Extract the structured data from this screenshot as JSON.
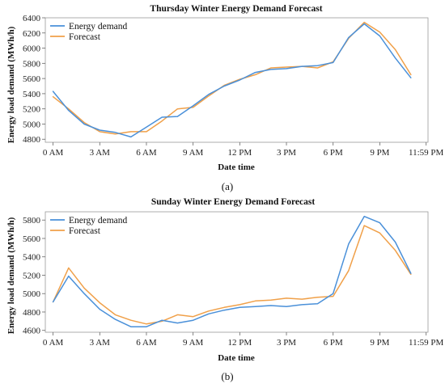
{
  "chart_data": [
    {
      "caption": "(a)",
      "type": "line",
      "title": "Thursday Winter Energy Demand Forecast",
      "xlabel": "Date time",
      "ylabel": "Energy load demand (MWh/h)",
      "x_ticks": [
        {
          "x": 0,
          "label": "0 AM"
        },
        {
          "x": 3,
          "label": "3 AM"
        },
        {
          "x": 6,
          "label": "6 AM"
        },
        {
          "x": 9,
          "label": "9 AM"
        },
        {
          "x": 12,
          "label": "12 PM"
        },
        {
          "x": 15,
          "label": "3 PM"
        },
        {
          "x": 18,
          "label": "6 PM"
        },
        {
          "x": 21,
          "label": "9 PM"
        },
        {
          "x": 23.98,
          "label": "11:59 PM"
        }
      ],
      "xlim": [
        -0.5,
        24.1
      ],
      "y_ticks": [
        4800,
        5000,
        5200,
        5400,
        5600,
        5800,
        6000,
        6200,
        6400
      ],
      "ylim": [
        4760,
        6400
      ],
      "legend": "top-left",
      "grid": false,
      "x": [
        0,
        1,
        2,
        3,
        4,
        5,
        6,
        7,
        8,
        9,
        10,
        11,
        12,
        13,
        14,
        15,
        16,
        17,
        18,
        19,
        20,
        21,
        22,
        23
      ],
      "series": [
        {
          "name": "Energy demand",
          "color": "#4a90d9",
          "values": [
            5430,
            5180,
            5000,
            4920,
            4890,
            4830,
            4960,
            5090,
            5100,
            5240,
            5390,
            5500,
            5580,
            5680,
            5720,
            5730,
            5760,
            5770,
            5810,
            6140,
            6320,
            6160,
            5870,
            5610
          ]
        },
        {
          "name": "Forecast",
          "color": "#f0a049",
          "values": [
            5360,
            5200,
            5020,
            4900,
            4870,
            4900,
            4900,
            5040,
            5200,
            5220,
            5370,
            5510,
            5590,
            5650,
            5740,
            5750,
            5760,
            5740,
            5820,
            6130,
            6340,
            6210,
            5980,
            5650
          ]
        }
      ]
    },
    {
      "caption": "(b)",
      "type": "line",
      "title": "Sunday Winter Energy Demand Forecast",
      "xlabel": "Date time",
      "ylabel": "Energy load demand (MWh/h)",
      "x_ticks": [
        {
          "x": 0,
          "label": "0 AM"
        },
        {
          "x": 3,
          "label": "3 AM"
        },
        {
          "x": 6,
          "label": "6 AM"
        },
        {
          "x": 9,
          "label": "9 AM"
        },
        {
          "x": 12,
          "label": "12 PM"
        },
        {
          "x": 15,
          "label": "3 PM"
        },
        {
          "x": 18,
          "label": "6 PM"
        },
        {
          "x": 21,
          "label": "9 PM"
        },
        {
          "x": 23.98,
          "label": "11:59 PM"
        }
      ],
      "xlim": [
        -0.5,
        24.1
      ],
      "y_ticks": [
        4600,
        4800,
        5000,
        5200,
        5400,
        5600,
        5800
      ],
      "ylim": [
        4580,
        5890
      ],
      "legend": "top-left",
      "grid": false,
      "x": [
        0,
        1,
        2,
        3,
        4,
        5,
        6,
        7,
        8,
        9,
        10,
        11,
        12,
        13,
        14,
        15,
        16,
        17,
        18,
        19,
        20,
        21,
        22,
        23
      ],
      "series": [
        {
          "name": "Energy demand",
          "color": "#4a90d9",
          "values": [
            4910,
            5190,
            5000,
            4830,
            4720,
            4640,
            4640,
            4710,
            4680,
            4710,
            4780,
            4820,
            4850,
            4860,
            4870,
            4860,
            4880,
            4890,
            5000,
            5540,
            5840,
            5770,
            5560,
            5220
          ]
        },
        {
          "name": "Forecast",
          "color": "#f0a049",
          "values": [
            4910,
            5280,
            5060,
            4900,
            4770,
            4710,
            4670,
            4700,
            4770,
            4750,
            4810,
            4850,
            4880,
            4920,
            4930,
            4950,
            4940,
            4960,
            4970,
            5250,
            5740,
            5660,
            5470,
            5210
          ]
        }
      ]
    }
  ]
}
